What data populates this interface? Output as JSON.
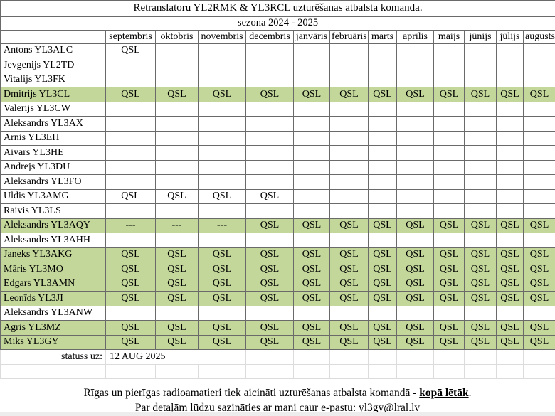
{
  "header": {
    "title": "Retranslatoru YL2RMK & YL3RCL uzturēšanas atbalsta komanda.",
    "season": "sezona 2024 - 2025"
  },
  "table": {
    "months": [
      "septembris",
      "oktobris",
      "novembris",
      "decembris",
      "janvāris",
      "februāris",
      "marts",
      "aprīlis",
      "maijs",
      "jūnijs",
      "jūlijs",
      "augusts"
    ],
    "rows": [
      {
        "name": "Antons YL3ALC",
        "highlighted": false,
        "cells": [
          "QSL",
          "",
          "",
          "",
          "",
          "",
          "",
          "",
          "",
          "",
          "",
          ""
        ]
      },
      {
        "name": "Jevgenijs YL2TD",
        "highlighted": false,
        "cells": [
          "",
          "",
          "",
          "",
          "",
          "",
          "",
          "",
          "",
          "",
          "",
          ""
        ]
      },
      {
        "name": "Vitalijs YL3FK",
        "highlighted": false,
        "cells": [
          "",
          "",
          "",
          "",
          "",
          "",
          "",
          "",
          "",
          "",
          "",
          ""
        ]
      },
      {
        "name": "Dmitrijs YL3CL",
        "highlighted": true,
        "cells": [
          "QSL",
          "QSL",
          "QSL",
          "QSL",
          "QSL",
          "QSL",
          "QSL",
          "QSL",
          "QSL",
          "QSL",
          "QSL",
          "QSL"
        ]
      },
      {
        "name": "Valerijs YL3CW",
        "highlighted": false,
        "cells": [
          "",
          "",
          "",
          "",
          "",
          "",
          "",
          "",
          "",
          "",
          "",
          ""
        ]
      },
      {
        "name": "Aleksandrs YL3AX",
        "highlighted": false,
        "cells": [
          "",
          "",
          "",
          "",
          "",
          "",
          "",
          "",
          "",
          "",
          "",
          ""
        ]
      },
      {
        "name": "Arnis YL3EH",
        "highlighted": false,
        "cells": [
          "",
          "",
          "",
          "",
          "",
          "",
          "",
          "",
          "",
          "",
          "",
          ""
        ]
      },
      {
        "name": "Aivars YL3HE",
        "highlighted": false,
        "cells": [
          "",
          "",
          "",
          "",
          "",
          "",
          "",
          "",
          "",
          "",
          "",
          ""
        ]
      },
      {
        "name": "Andrejs YL3DU",
        "highlighted": false,
        "cells": [
          "",
          "",
          "",
          "",
          "",
          "",
          "",
          "",
          "",
          "",
          "",
          ""
        ]
      },
      {
        "name": "Aleksandrs YL3FO",
        "highlighted": false,
        "cells": [
          "",
          "",
          "",
          "",
          "",
          "",
          "",
          "",
          "",
          "",
          "",
          ""
        ]
      },
      {
        "name": "Uldis YL3AMG",
        "highlighted": false,
        "cells": [
          "QSL",
          "QSL",
          "QSL",
          "QSL",
          "",
          "",
          "",
          "",
          "",
          "",
          "",
          ""
        ]
      },
      {
        "name": "Raivis YL3LS",
        "highlighted": false,
        "cells": [
          "",
          "",
          "",
          "",
          "",
          "",
          "",
          "",
          "",
          "",
          "",
          ""
        ]
      },
      {
        "name": "Aleksandrs YL3AQY",
        "highlighted": true,
        "cells": [
          "---",
          "---",
          "---",
          "QSL",
          "QSL",
          "QSL",
          "QSL",
          "QSL",
          "QSL",
          "QSL",
          "QSL",
          "QSL"
        ]
      },
      {
        "name": "Aleksandrs YL3AHH",
        "highlighted": false,
        "cells": [
          "",
          "",
          "",
          "",
          "",
          "",
          "",
          "",
          "",
          "",
          "",
          ""
        ]
      },
      {
        "name": "Janeks YL3AKG",
        "highlighted": true,
        "cells": [
          "QSL",
          "QSL",
          "QSL",
          "QSL",
          "QSL",
          "QSL",
          "QSL",
          "QSL",
          "QSL",
          "QSL",
          "QSL",
          "QSL"
        ]
      },
      {
        "name": "Māris YL3MO",
        "highlighted": true,
        "cells": [
          "QSL",
          "QSL",
          "QSL",
          "QSL",
          "QSL",
          "QSL",
          "QSL",
          "QSL",
          "QSL",
          "QSL",
          "QSL",
          "QSL"
        ]
      },
      {
        "name": "Edgars YL3AMN",
        "highlighted": true,
        "cells": [
          "QSL",
          "QSL",
          "QSL",
          "QSL",
          "QSL",
          "QSL",
          "QSL",
          "QSL",
          "QSL",
          "QSL",
          "QSL",
          "QSL"
        ]
      },
      {
        "name": "Leonīds YL3JI",
        "highlighted": true,
        "cells": [
          "QSL",
          "QSL",
          "QSL",
          "QSL",
          "QSL",
          "QSL",
          "QSL",
          "QSL",
          "QSL",
          "QSL",
          "QSL",
          "QSL"
        ]
      },
      {
        "name": "Aleksandrs YL3ANW",
        "highlighted": false,
        "cells": [
          "",
          "",
          "",
          "",
          "",
          "",
          "",
          "",
          "",
          "",
          "",
          ""
        ]
      },
      {
        "name": "Agris YL3MZ",
        "highlighted": true,
        "cells": [
          "QSL",
          "QSL",
          "QSL",
          "QSL",
          "QSL",
          "QSL",
          "QSL",
          "QSL",
          "QSL",
          "QSL",
          "QSL",
          "QSL"
        ]
      },
      {
        "name": "Miks YL3GY",
        "highlighted": true,
        "cells": [
          "QSL",
          "QSL",
          "QSL",
          "QSL",
          "QSL",
          "QSL",
          "QSL",
          "QSL",
          "QSL",
          "QSL",
          "QSL",
          "QSL"
        ]
      }
    ]
  },
  "status": {
    "label": "statuss uz:",
    "date": "12 AUG 2025"
  },
  "footer": {
    "line1_prefix": "Rīgas un pierīgas radioamatieri tiek aicināti uzturēšanas atbalsta komandā ",
    "line1_dash": "- ",
    "line1_bold": "kopā lētāk",
    "line1_suffix": ".",
    "line2": "Par detaļām lūdzu sazināties ar mani caur e-pastu: yl3gy@lral.lv"
  },
  "colors": {
    "highlight_green": "#c3d79b",
    "table_border": "#6a6a6a",
    "faint_grid": "#dcdcdc",
    "text": "#000000"
  }
}
